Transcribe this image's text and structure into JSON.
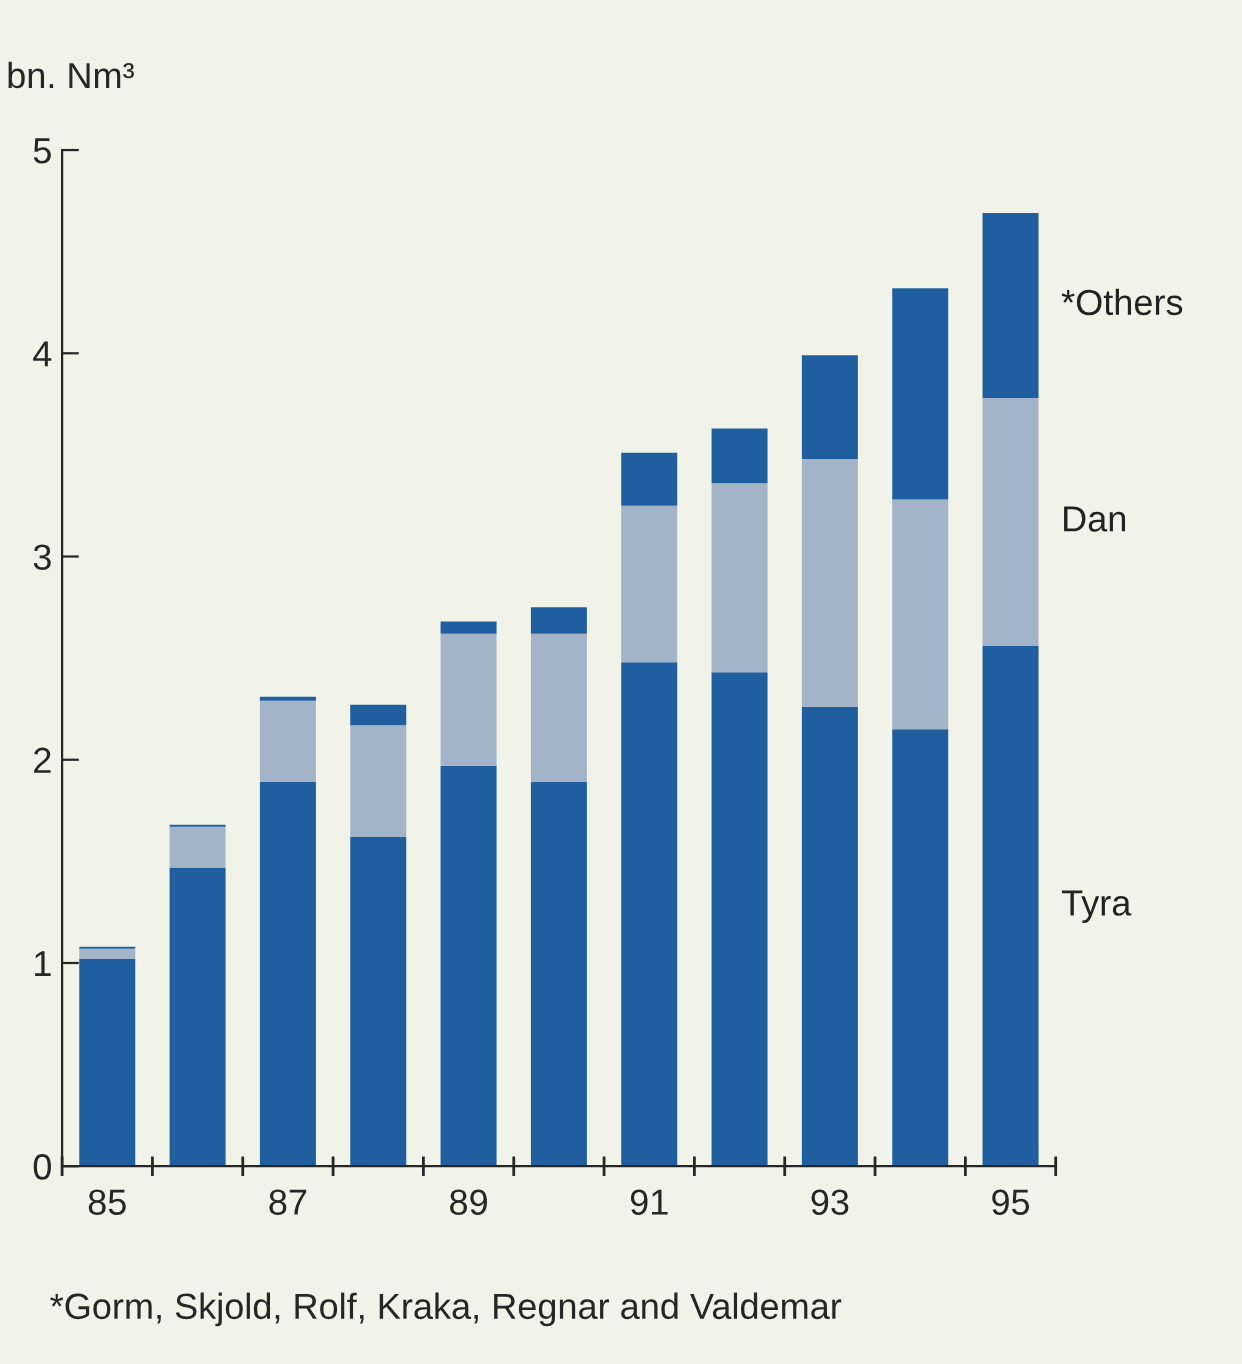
{
  "chart_data": {
    "type": "bar",
    "stacked": true,
    "ylabel": "bn. Nm³",
    "categories": [
      "85",
      null,
      "87",
      null,
      "89",
      null,
      "91",
      null,
      "93",
      null,
      "95"
    ],
    "series": [
      {
        "name": "Tyra",
        "color": "#1f5fa0",
        "values": [
          1.02,
          1.47,
          1.89,
          1.62,
          1.97,
          1.89,
          2.48,
          2.43,
          2.26,
          2.15,
          2.56
        ]
      },
      {
        "name": "Dan",
        "color": "#a3b3c8",
        "values": [
          0.05,
          0.2,
          0.4,
          0.55,
          0.65,
          0.73,
          0.77,
          0.93,
          1.22,
          1.13,
          1.22
        ]
      },
      {
        "name": "*Others",
        "color": "#1f5fa0",
        "values": [
          0.01,
          0.01,
          0.02,
          0.1,
          0.06,
          0.13,
          0.26,
          0.27,
          0.51,
          1.04,
          0.91
        ]
      }
    ],
    "ylim": [
      0,
      5
    ],
    "yticks": [
      0,
      1,
      2,
      3,
      4,
      5
    ],
    "grid": false,
    "legend": false,
    "annotations": [
      "*Gorm, Skjold, Rolf, Kraka, Regnar and Valdemar"
    ]
  }
}
